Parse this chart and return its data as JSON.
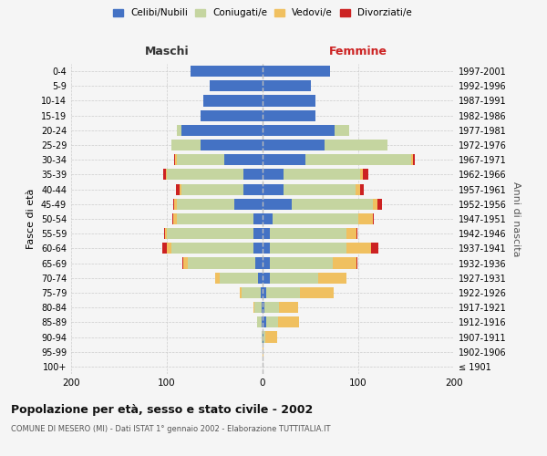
{
  "age_groups": [
    "100+",
    "95-99",
    "90-94",
    "85-89",
    "80-84",
    "75-79",
    "70-74",
    "65-69",
    "60-64",
    "55-59",
    "50-54",
    "45-49",
    "40-44",
    "35-39",
    "30-34",
    "25-29",
    "20-24",
    "15-19",
    "10-14",
    "5-9",
    "0-4"
  ],
  "birth_years": [
    "≤ 1901",
    "1902-1906",
    "1907-1911",
    "1912-1916",
    "1917-1921",
    "1922-1926",
    "1927-1931",
    "1932-1936",
    "1937-1941",
    "1942-1946",
    "1947-1951",
    "1952-1956",
    "1957-1961",
    "1962-1966",
    "1967-1971",
    "1972-1976",
    "1977-1981",
    "1982-1986",
    "1987-1991",
    "1992-1996",
    "1997-2001"
  ],
  "colors": {
    "celibi": "#4472c4",
    "coniugati": "#c5d5a0",
    "vedovi": "#f0c060",
    "divorziati": "#cc2222"
  },
  "male": {
    "celibi": [
      0,
      0,
      0,
      1,
      1,
      2,
      5,
      8,
      10,
      10,
      10,
      30,
      20,
      20,
      40,
      65,
      85,
      65,
      62,
      55,
      75
    ],
    "coniugati": [
      0,
      0,
      1,
      5,
      8,
      20,
      40,
      70,
      85,
      90,
      80,
      60,
      65,
      80,
      50,
      30,
      5,
      0,
      0,
      0,
      0
    ],
    "vedovi": [
      0,
      0,
      0,
      0,
      1,
      2,
      5,
      5,
      5,
      2,
      3,
      2,
      2,
      1,
      1,
      0,
      0,
      0,
      0,
      0,
      0
    ],
    "divorziati": [
      0,
      0,
      0,
      0,
      0,
      0,
      0,
      1,
      5,
      1,
      1,
      1,
      3,
      3,
      1,
      0,
      0,
      0,
      0,
      0,
      0
    ]
  },
  "female": {
    "celibi": [
      0,
      0,
      1,
      4,
      2,
      4,
      8,
      8,
      8,
      8,
      10,
      30,
      22,
      22,
      45,
      65,
      75,
      55,
      55,
      50,
      70
    ],
    "coniugati": [
      0,
      0,
      2,
      12,
      15,
      35,
      50,
      65,
      80,
      80,
      90,
      85,
      75,
      80,
      110,
      65,
      15,
      0,
      0,
      0,
      0
    ],
    "vedovi": [
      0,
      1,
      12,
      22,
      20,
      35,
      30,
      25,
      25,
      10,
      15,
      5,
      5,
      3,
      2,
      0,
      0,
      0,
      0,
      0,
      0
    ],
    "divorziati": [
      0,
      0,
      0,
      0,
      0,
      0,
      0,
      1,
      8,
      1,
      1,
      5,
      4,
      5,
      2,
      0,
      0,
      0,
      0,
      0,
      0
    ]
  },
  "title": "Popolazione per età, sesso e stato civile - 2002",
  "subtitle": "COMUNE DI MESERO (MI) - Dati ISTAT 1° gennaio 2002 - Elaborazione TUTTITALIA.IT",
  "xlabel_left": "Maschi",
  "xlabel_right": "Femmine",
  "ylabel_left": "Fasce di età",
  "ylabel_right": "Anni di nascita",
  "xlim": 200,
  "background_color": "#f5f5f5",
  "grid_color": "#cccccc",
  "legend_labels": [
    "Celibi/Nubili",
    "Coniugati/e",
    "Vedovi/e",
    "Divorziati/e"
  ]
}
